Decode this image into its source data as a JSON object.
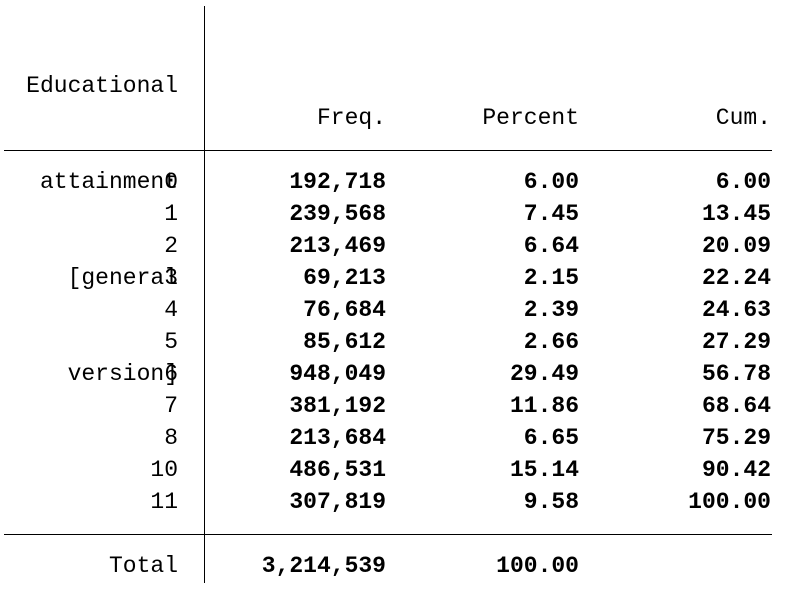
{
  "table": {
    "stub_header_lines": [
      "Educational",
      "attainment",
      "[general",
      "version]"
    ],
    "columns": {
      "freq": "Freq.",
      "percent": "Percent",
      "cum": "Cum."
    },
    "rows": [
      {
        "label": "0",
        "freq": "192,718",
        "percent": "6.00",
        "cum": "6.00"
      },
      {
        "label": "1",
        "freq": "239,568",
        "percent": "7.45",
        "cum": "13.45"
      },
      {
        "label": "2",
        "freq": "213,469",
        "percent": "6.64",
        "cum": "20.09"
      },
      {
        "label": "3",
        "freq": "69,213",
        "percent": "2.15",
        "cum": "22.24"
      },
      {
        "label": "4",
        "freq": "76,684",
        "percent": "2.39",
        "cum": "24.63"
      },
      {
        "label": "5",
        "freq": "85,612",
        "percent": "2.66",
        "cum": "27.29"
      },
      {
        "label": "6",
        "freq": "948,049",
        "percent": "29.49",
        "cum": "56.78"
      },
      {
        "label": "7",
        "freq": "381,192",
        "percent": "11.86",
        "cum": "68.64"
      },
      {
        "label": "8",
        "freq": "213,684",
        "percent": "6.65",
        "cum": "75.29"
      },
      {
        "label": "10",
        "freq": "486,531",
        "percent": "15.14",
        "cum": "90.42"
      },
      {
        "label": "11",
        "freq": "307,819",
        "percent": "9.58",
        "cum": "100.00"
      }
    ],
    "total": {
      "label": "Total",
      "freq": "3,214,539",
      "percent": "100.00"
    }
  }
}
